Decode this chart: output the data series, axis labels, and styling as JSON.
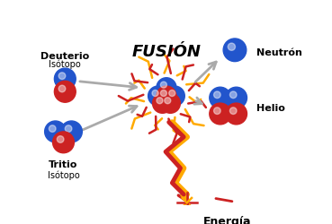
{
  "title": "FUSIÓN",
  "bg_color": "#ffffff",
  "blue_color": "#2255cc",
  "red_color": "#cc2222",
  "gray_arrow": "#aaaaaa",
  "orange_color": "#ffaa00",
  "labels": {
    "deuterio": "Deuterio",
    "isotopo1": "Isótopo",
    "tritio": "Tritio",
    "isotopo2": "Isótopo",
    "neutron": "Neutrón",
    "helio": "Helio",
    "energia": "Energía"
  },
  "figsize": [
    3.69,
    2.51
  ],
  "dpi": 100
}
